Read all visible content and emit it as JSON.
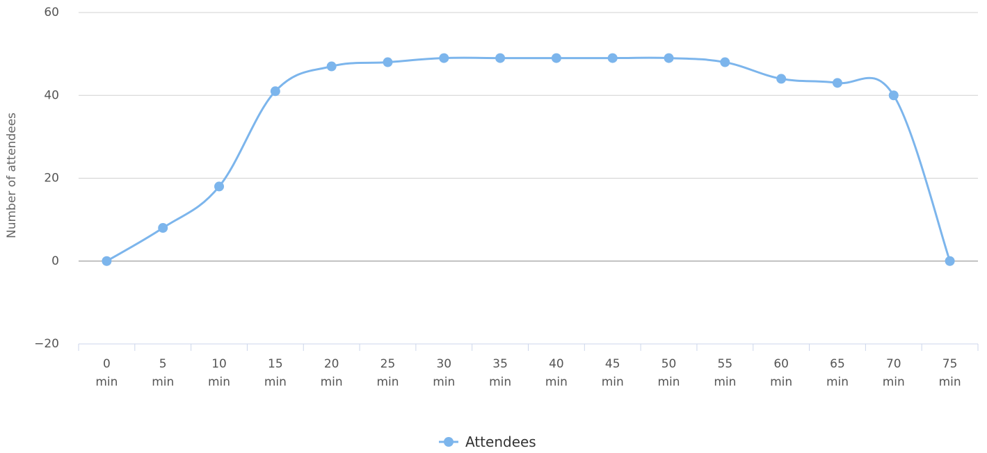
{
  "chart_data": {
    "type": "line",
    "title": "",
    "xlabel": "",
    "ylabel": "Number of attendees",
    "categories": [
      [
        "0",
        "min"
      ],
      [
        "5",
        "min"
      ],
      [
        "10",
        "min"
      ],
      [
        "15",
        "min"
      ],
      [
        "20",
        "min"
      ],
      [
        "25",
        "min"
      ],
      [
        "30",
        "min"
      ],
      [
        "35",
        "min"
      ],
      [
        "40",
        "min"
      ],
      [
        "45",
        "min"
      ],
      [
        "50",
        "min"
      ],
      [
        "55",
        "min"
      ],
      [
        "60",
        "min"
      ],
      [
        "65",
        "min"
      ],
      [
        "70",
        "min"
      ],
      [
        "75",
        "min"
      ]
    ],
    "series": [
      {
        "name": "Attendees",
        "color": "#7cb5ec",
        "values": [
          0,
          8,
          18,
          41,
          47,
          48,
          49,
          49,
          49,
          49,
          49,
          48,
          44,
          43,
          40,
          0
        ]
      }
    ],
    "ylim": [
      -20,
      60
    ],
    "yticks": [
      -20,
      0,
      20,
      40,
      60
    ],
    "grid": true,
    "smooth": true,
    "legend": "bottom-center",
    "colors": {
      "grid": "#d0d0d0",
      "zero_line": "#bfbfbf",
      "x_axis": "#ccd6eb",
      "tick_label": "#555555",
      "axis_title": "#666666",
      "legend_text": "#333333"
    }
  }
}
